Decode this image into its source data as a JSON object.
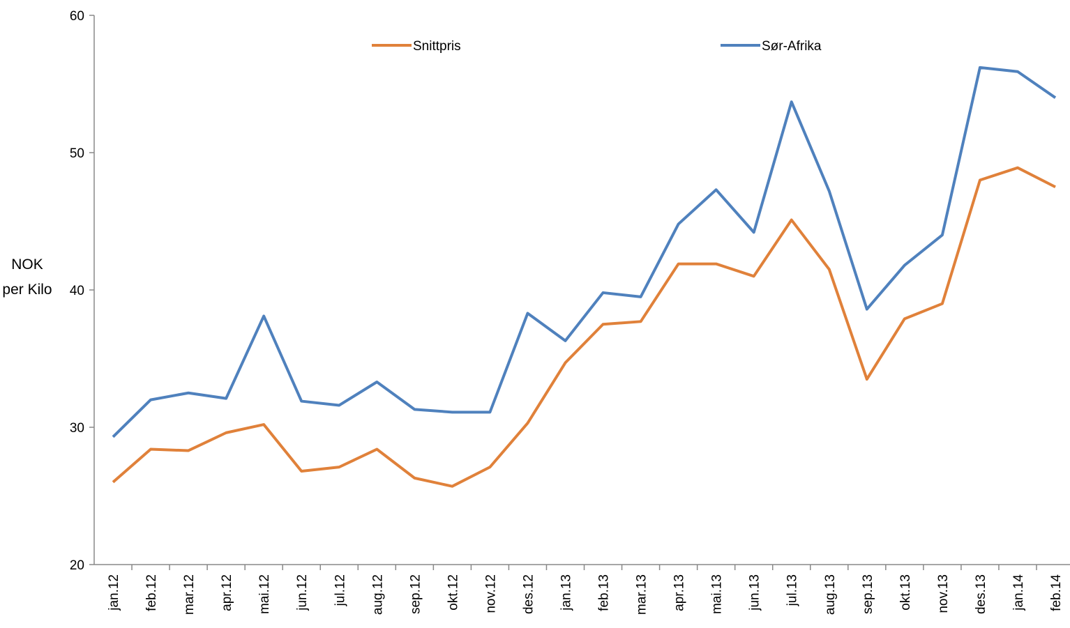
{
  "chart_data": {
    "type": "line",
    "y_label": "NOK per Kilo",
    "categories": [
      "jan.12",
      "feb.12",
      "mar.12",
      "apr.12",
      "mai.12",
      "jun.12",
      "jul.12",
      "aug.12",
      "sep.12",
      "okt.12",
      "nov.12",
      "des.12",
      "jan.13",
      "feb.13",
      "mar.13",
      "apr.13",
      "mai.13",
      "jun.13",
      "jul.13",
      "aug.13",
      "sep.13",
      "okt.13",
      "nov.13",
      "des.13",
      "jan.14",
      "feb.14"
    ],
    "series": [
      {
        "name": "Snittpris",
        "color": "#e0813a",
        "values": [
          26.0,
          28.4,
          28.3,
          29.6,
          30.2,
          26.8,
          27.1,
          28.4,
          26.3,
          25.7,
          27.1,
          30.3,
          34.7,
          37.5,
          37.7,
          41.9,
          41.9,
          41.0,
          45.1,
          41.5,
          33.5,
          37.9,
          39.0,
          48.0,
          48.9,
          47.5
        ]
      },
      {
        "name": "Sør-Afrika",
        "color": "#4f81bd",
        "values": [
          29.3,
          32.0,
          32.5,
          32.1,
          38.1,
          31.9,
          31.6,
          33.3,
          31.3,
          31.1,
          31.1,
          38.3,
          36.3,
          39.8,
          39.5,
          44.8,
          47.3,
          44.2,
          53.7,
          47.2,
          38.6,
          41.8,
          44.0,
          56.2,
          55.9,
          54.0
        ]
      }
    ],
    "ylim": [
      20,
      60
    ],
    "yticks": [
      20,
      30,
      40,
      50,
      60
    ],
    "grid": false,
    "legend": "top"
  }
}
